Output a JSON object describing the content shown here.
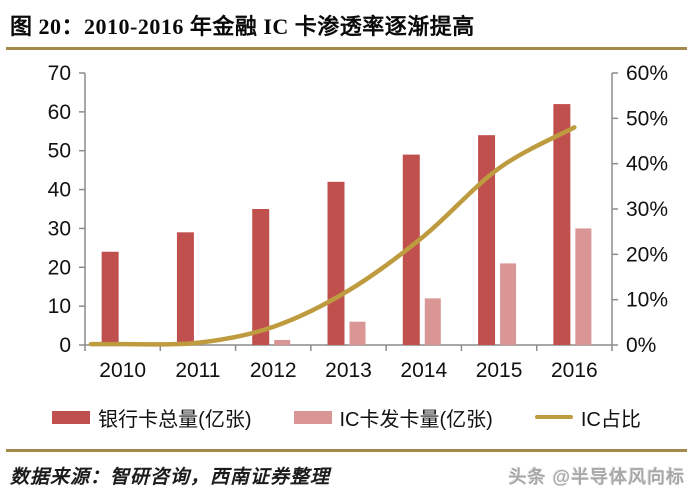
{
  "title": "图 20：2010-2016 年金融 IC 卡渗透率逐渐提高",
  "footer": {
    "source": "数据来源：智研咨询，西南证券整理",
    "watermark": "头条 @半导体风向标"
  },
  "colors": {
    "bank_bar": "#c0504d",
    "ic_bar": "#d99694",
    "line": "#bf9b3f",
    "separator": "#a3894c",
    "axis": "#8c8c8c",
    "tick_text": "#111111"
  },
  "chart_data": {
    "type": "bar",
    "subtype": "dual-axis bar+line combo",
    "title": "2010-2016 年金融 IC 卡渗透率逐渐提高",
    "categories": [
      "2010",
      "2011",
      "2012",
      "2013",
      "2014",
      "2015",
      "2016"
    ],
    "series": [
      {
        "name": "银行卡总量(亿张)",
        "type": "bar",
        "axis": "left",
        "color": "#c0504d",
        "values": [
          24,
          29,
          35,
          42,
          49,
          54,
          62
        ]
      },
      {
        "name": "IC卡发卡量(亿张)",
        "type": "bar",
        "axis": "left",
        "color": "#d99694",
        "values": [
          0,
          0,
          1.3,
          6,
          12,
          21,
          30
        ]
      },
      {
        "name": "IC占比",
        "type": "line",
        "axis": "right",
        "color": "#bf9b3f",
        "values_pct": [
          0.2,
          0.5,
          4,
          12,
          24,
          39,
          48
        ]
      }
    ],
    "left_axis": {
      "min": 0,
      "max": 70,
      "step": 10,
      "tick_labels": [
        "0",
        "10",
        "20",
        "30",
        "40",
        "50",
        "60",
        "70"
      ]
    },
    "right_axis": {
      "min": 0,
      "max": 60,
      "step": 10,
      "tick_labels": [
        "0%",
        "10%",
        "20%",
        "30%",
        "40%",
        "50%",
        "60%"
      ]
    },
    "grid": false,
    "legend_position": "bottom",
    "xlabel": "",
    "ylabel": ""
  }
}
